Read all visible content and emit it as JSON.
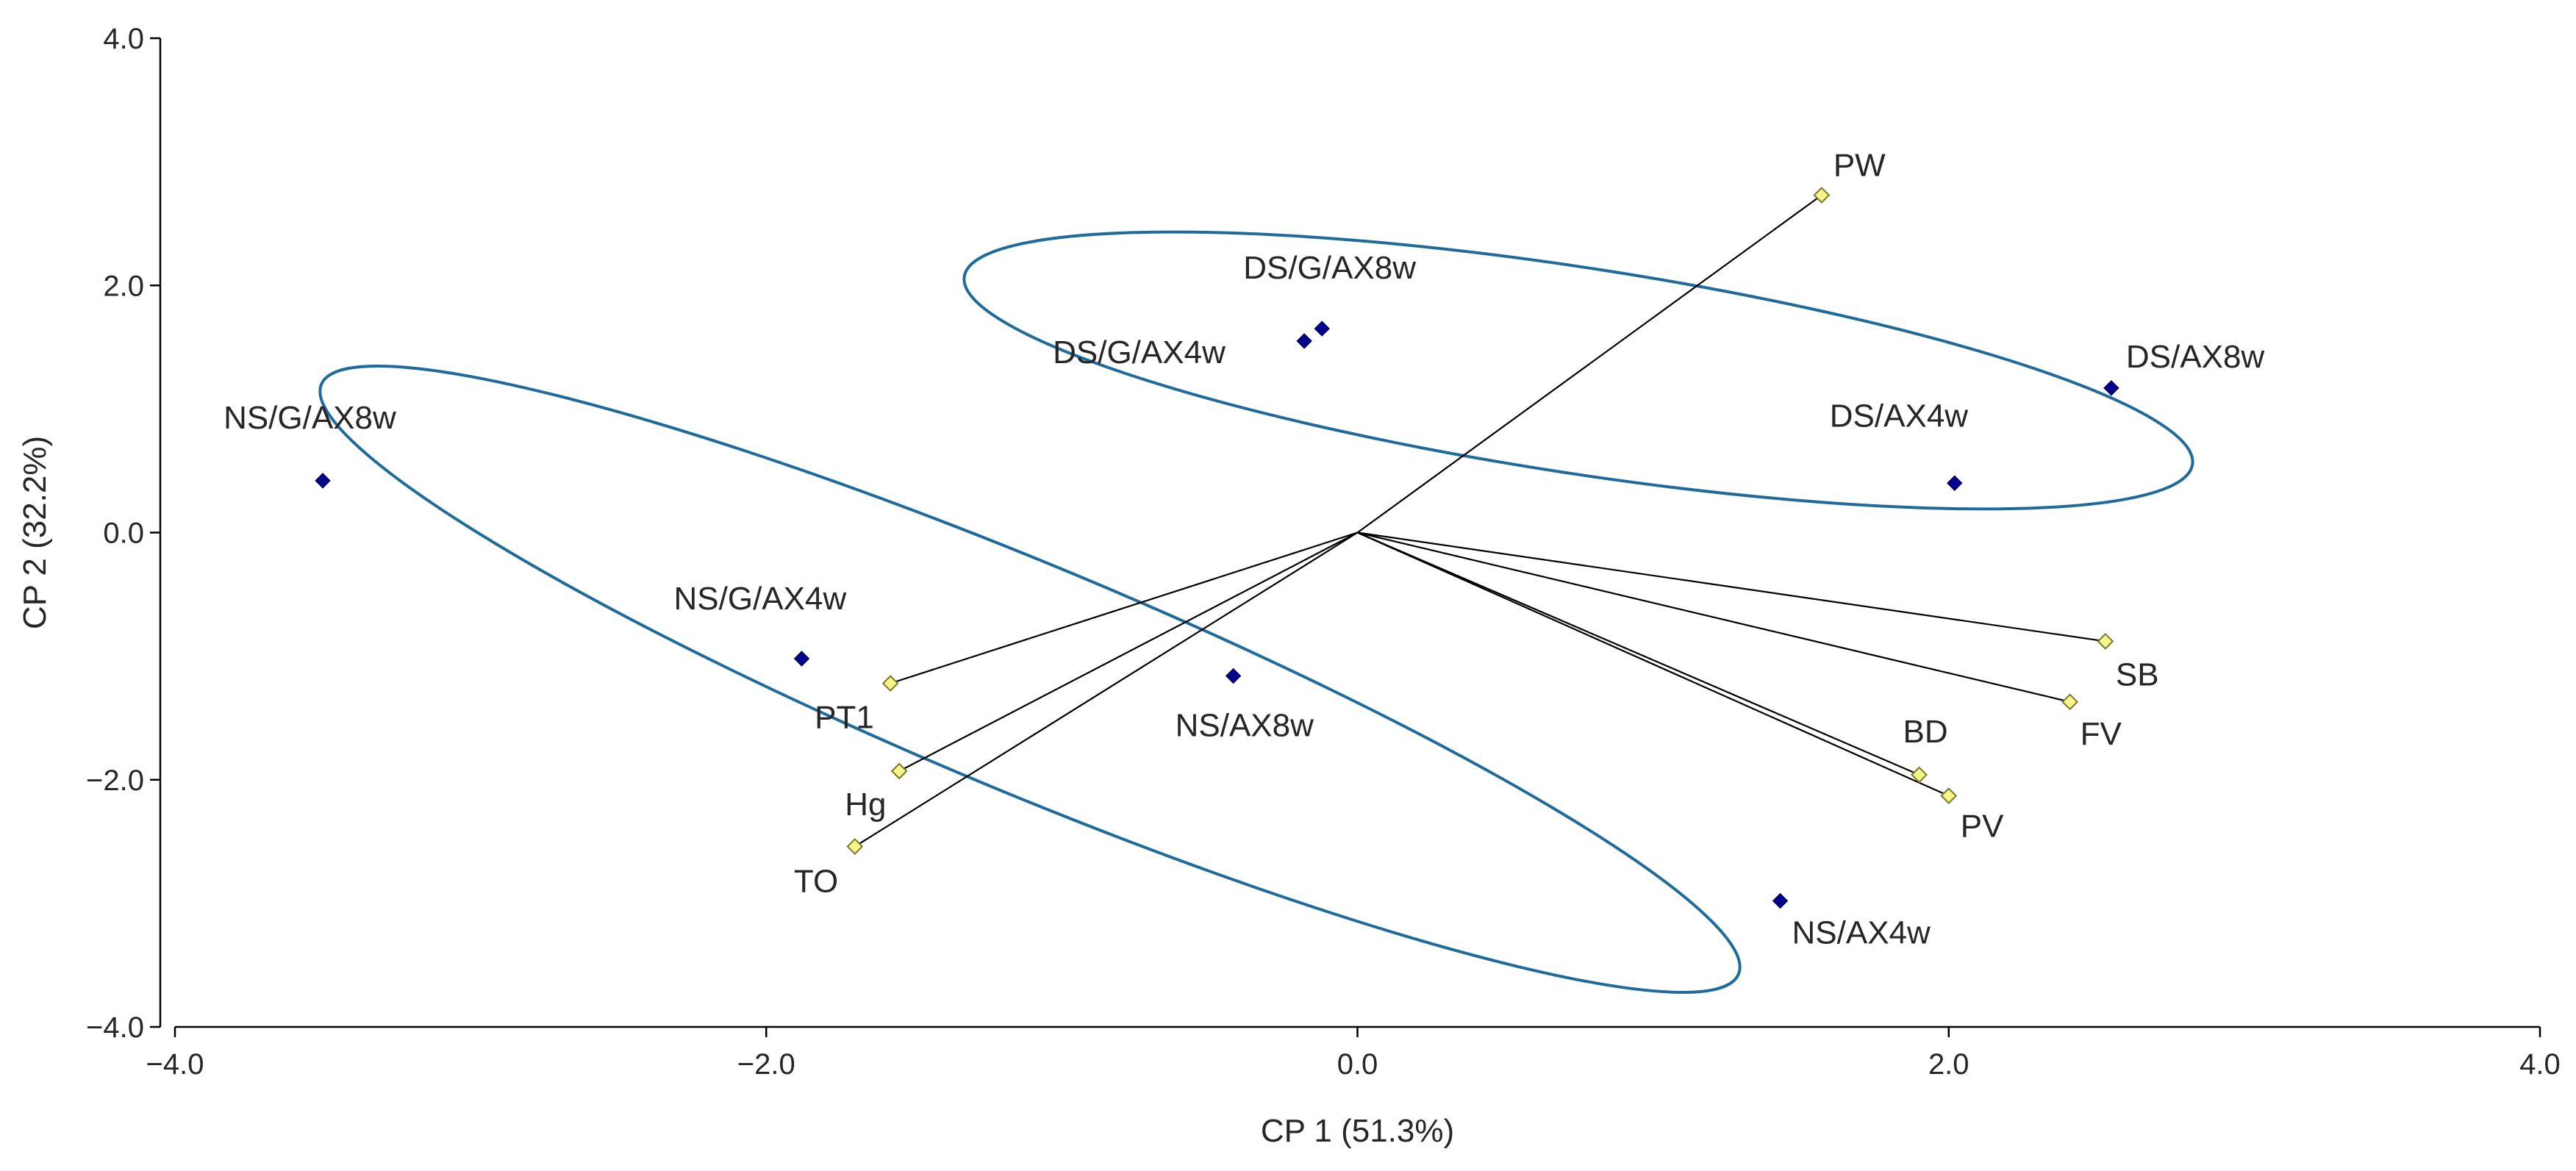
{
  "chart_data": {
    "type": "scatter",
    "subtype": "pca-biplot",
    "title": "",
    "xlabel": "CP 1 (51.3%)",
    "ylabel": "CP 2 (32.2%)",
    "xlim": [
      -4.0,
      4.0
    ],
    "ylim": [
      -4.0,
      4.0
    ],
    "x_ticks": [
      {
        "value": -4.0,
        "label": "−4.0"
      },
      {
        "value": -2.0,
        "label": "−2.0"
      },
      {
        "value": 0.0,
        "label": "0.0"
      },
      {
        "value": 2.0,
        "label": "2.0"
      },
      {
        "value": 4.0,
        "label": "4.0"
      }
    ],
    "y_ticks": [
      {
        "value": 4.0,
        "label": "4.0"
      },
      {
        "value": 2.0,
        "label": "2.0"
      },
      {
        "value": 0.0,
        "label": "0.0"
      },
      {
        "value": -2.0,
        "label": "−2.0"
      },
      {
        "value": -4.0,
        "label": "−4.0"
      }
    ],
    "grid": false,
    "colors": {
      "observation": "#00008b",
      "variable_fill": "#f5f58a",
      "variable_stroke": "#7a7a2a",
      "vector": "#000000",
      "ellipse": "#1f6b9c",
      "axis": "#000000",
      "text": "#262626"
    },
    "observations": [
      {
        "label": "NS/G/AX8w",
        "x": -3.5,
        "y": 0.42
      },
      {
        "label": "NS/G/AX4w",
        "x": -1.88,
        "y": -1.02
      },
      {
        "label": "NS/AX8w",
        "x": -0.42,
        "y": -1.16
      },
      {
        "label": "NS/AX4w",
        "x": 1.43,
        "y": -2.98
      },
      {
        "label": "DS/G/AX8w",
        "x": -0.12,
        "y": 1.65
      },
      {
        "label": "DS/G/AX4w",
        "x": -0.18,
        "y": 1.55
      },
      {
        "label": "DS/AX8w",
        "x": 2.55,
        "y": 1.17
      },
      {
        "label": "DS/AX4w",
        "x": 2.02,
        "y": 0.4
      }
    ],
    "variables": [
      {
        "label": "PW",
        "x": 1.57,
        "y": 2.73
      },
      {
        "label": "SB",
        "x": 2.53,
        "y": -0.88
      },
      {
        "label": "FV",
        "x": 2.41,
        "y": -1.37
      },
      {
        "label": "BD",
        "x": 1.9,
        "y": -1.96
      },
      {
        "label": "PV",
        "x": 2.0,
        "y": -2.13
      },
      {
        "label": "PT1",
        "x": -1.58,
        "y": -1.22
      },
      {
        "label": "Hg",
        "x": -1.55,
        "y": -1.93
      },
      {
        "label": "TO",
        "x": -1.7,
        "y": -2.54
      }
    ],
    "groups": [
      {
        "name": "DS",
        "members": [
          "DS/G/AX8w",
          "DS/G/AX4w",
          "DS/AX8w",
          "DS/AX4w"
        ]
      },
      {
        "name": "NS",
        "members": [
          "NS/G/AX8w",
          "NS/G/AX4w",
          "NS/AX8w",
          "NS/AX4w"
        ]
      }
    ]
  }
}
